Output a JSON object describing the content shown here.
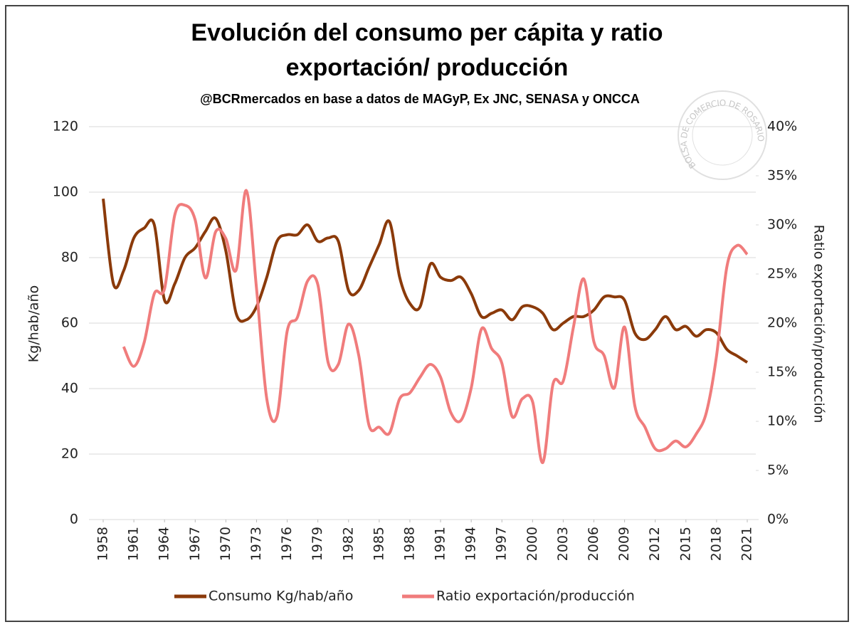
{
  "chart_data": {
    "type": "line",
    "title": [
      "Evolución del consumo per cápita y ratio",
      "exportación/ producción"
    ],
    "subtitle": "@BCRmercados en base a datos de MAGyP,  Ex JNC, SENASA y ONCCA",
    "watermark": "BOLSA DE COMERCIO DE ROSARIO",
    "ylabel": "Kg/hab/año",
    "y2label": "Ratio exportación/producción",
    "x": [
      1958,
      1959,
      1960,
      1961,
      1962,
      1963,
      1964,
      1965,
      1966,
      1967,
      1968,
      1969,
      1970,
      1971,
      1972,
      1973,
      1974,
      1975,
      1976,
      1977,
      1978,
      1979,
      1980,
      1981,
      1982,
      1983,
      1984,
      1985,
      1986,
      1987,
      1988,
      1989,
      1990,
      1991,
      1992,
      1993,
      1994,
      1995,
      1996,
      1997,
      1998,
      1999,
      2000,
      2001,
      2002,
      2003,
      2004,
      2005,
      2006,
      2007,
      2008,
      2009,
      2010,
      2011,
      2012,
      2013,
      2014,
      2015,
      2016,
      2017,
      2018,
      2019,
      2020,
      2021
    ],
    "xlim": [
      1958,
      2021
    ],
    "xticks": [
      1958,
      1961,
      1964,
      1967,
      1970,
      1973,
      1976,
      1979,
      1982,
      1985,
      1988,
      1991,
      1994,
      1997,
      2000,
      2003,
      2006,
      2009,
      2012,
      2015,
      2018,
      2021
    ],
    "ylim": [
      0,
      120
    ],
    "yticks": [
      0,
      20,
      40,
      60,
      80,
      100,
      120
    ],
    "y2lim": [
      0,
      40
    ],
    "y2ticks": [
      {
        "value": 0,
        "label": "0%"
      },
      {
        "value": 5,
        "label": "5%"
      },
      {
        "value": 10,
        "label": "10%"
      },
      {
        "value": 15,
        "label": "15%"
      },
      {
        "value": 20,
        "label": "20%"
      },
      {
        "value": 25,
        "label": "25%"
      },
      {
        "value": 30,
        "label": "30%"
      },
      {
        "value": 35,
        "label": "35%"
      },
      {
        "value": 40,
        "label": "40%"
      }
    ],
    "grid": true,
    "legend": "bottom",
    "series": [
      {
        "name": "Consumo Kg/hab/año",
        "color": "#8b3a0a",
        "values": [
          98,
          72,
          76,
          86,
          89,
          90,
          67,
          72,
          80,
          83,
          88,
          92,
          82,
          63,
          61,
          65,
          74,
          85,
          87,
          87,
          90,
          85,
          86,
          85,
          70,
          70,
          77,
          84,
          91,
          74,
          66,
          65,
          78,
          74,
          73,
          74,
          69,
          62,
          63,
          64,
          61,
          65,
          65,
          63,
          58,
          60,
          62,
          62,
          64,
          68,
          68,
          67,
          57,
          55,
          58,
          62,
          58,
          59,
          56,
          58,
          57,
          52,
          50,
          48
        ]
      },
      {
        "name": "Ratio exportación/producción",
        "color": "#f07c7c",
        "axis": "y2",
        "values": [
          null,
          null,
          17.6,
          15.6,
          18,
          23,
          23.5,
          31,
          32,
          30.5,
          24.6,
          29.3,
          28.6,
          25.4,
          33.5,
          23.5,
          12.3,
          10.5,
          19.2,
          20.6,
          24.3,
          23.9,
          16,
          15.8,
          19.9,
          16.7,
          9.6,
          9.4,
          8.8,
          12.3,
          12.9,
          14.5,
          15.8,
          14.5,
          10.9,
          10.1,
          13.4,
          19.4,
          17.4,
          15.9,
          10.5,
          12.3,
          12,
          5.8,
          13.8,
          14.1,
          19.6,
          24.5,
          18.1,
          16.7,
          13.4,
          19.6,
          11.6,
          9.4,
          7.2,
          7.2,
          8,
          7.4,
          8.7,
          10.9,
          16.7,
          25.7,
          27.9,
          27
        ]
      }
    ]
  }
}
